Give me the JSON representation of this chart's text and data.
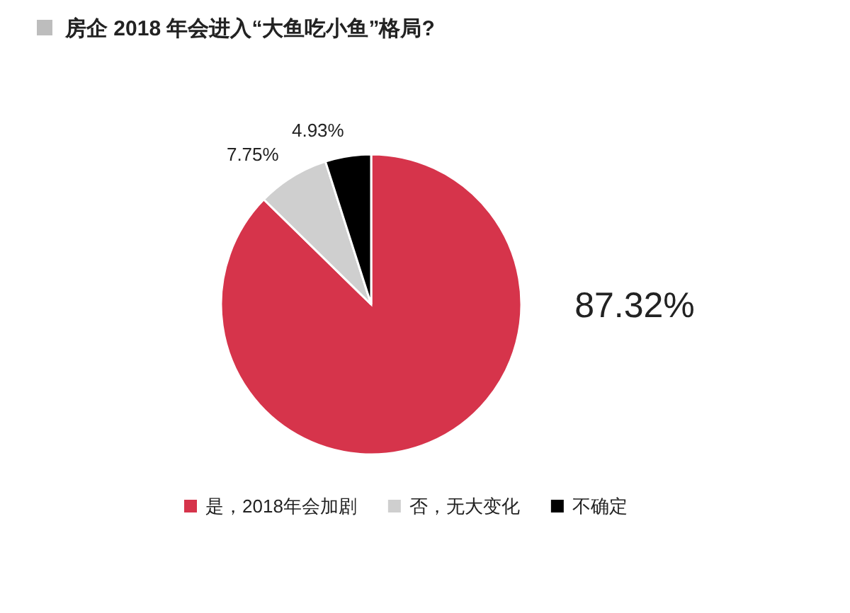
{
  "chart_data": {
    "type": "pie",
    "title": "房企 2018 年会进入“大鱼吃小鱼”格局?",
    "categories": [
      "是，2018年会加剧",
      "否，无大变化",
      "不确定"
    ],
    "values": [
      87.32,
      7.75,
      4.93
    ],
    "colors": [
      "#d6344b",
      "#cfcfcf",
      "#000000"
    ],
    "value_labels": [
      "87.32%",
      "7.75%",
      "4.93%"
    ],
    "legend": "bottom"
  }
}
